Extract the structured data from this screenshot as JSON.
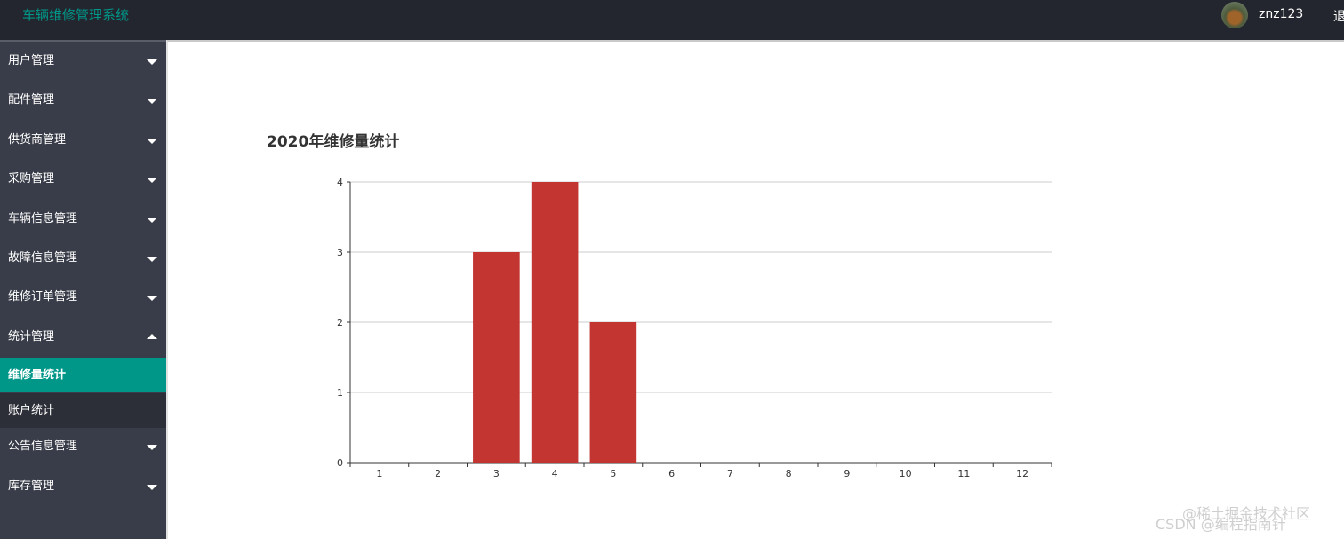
{
  "header": {
    "title": "车辆维修管理系统",
    "username": "znz123",
    "logout": "退"
  },
  "sidebar": {
    "items": [
      {
        "label": "用户管理"
      },
      {
        "label": "配件管理"
      },
      {
        "label": "供货商管理"
      },
      {
        "label": "采购管理"
      },
      {
        "label": "车辆信息管理"
      },
      {
        "label": "故障信息管理"
      },
      {
        "label": "维修订单管理"
      },
      {
        "label": "统计管理",
        "children": [
          "维修量统计",
          "账户统计"
        ]
      },
      {
        "label": "公告信息管理"
      },
      {
        "label": "库存管理"
      }
    ]
  },
  "chart_data": {
    "type": "bar",
    "title": "2020年维修量统计",
    "categories": [
      "1",
      "2",
      "3",
      "4",
      "5",
      "6",
      "7",
      "8",
      "9",
      "10",
      "11",
      "12"
    ],
    "values": [
      0,
      0,
      3,
      4,
      2,
      0,
      0,
      0,
      0,
      0,
      0,
      0
    ],
    "color": "#c23531",
    "ylim": [
      0,
      4
    ],
    "yticks": [
      0,
      1,
      2,
      3,
      4
    ],
    "grid": true
  },
  "watermarks": [
    "@稀土掘金技术社区",
    "CSDN @编程指南针"
  ]
}
